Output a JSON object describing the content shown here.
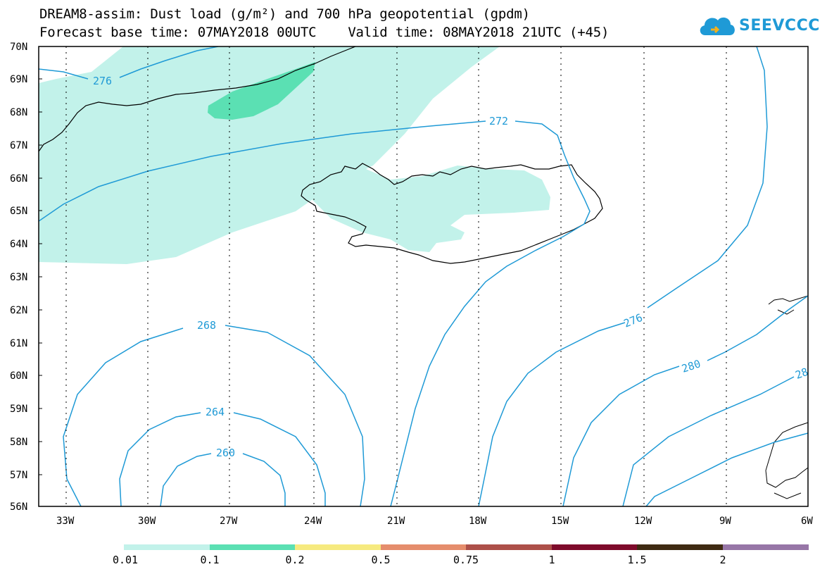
{
  "header": {
    "title_line1": "DREAM8-assim: Dust load (g/m²) and 700 hPa geopotential (gpdm)",
    "title_line2": "Forecast base time: 07MAY2018 00UTC    Valid time: 08MAY2018 21UTC (+45)",
    "logo_text": "SEEVCCC",
    "logo_icon": "cloud-icon"
  },
  "map": {
    "lat_labels": [
      "70N",
      "69N",
      "68N",
      "67N",
      "66N",
      "65N",
      "64N",
      "63N",
      "62N",
      "61N",
      "60N",
      "59N",
      "58N",
      "57N",
      "56N"
    ],
    "lon_labels": [
      "33W",
      "30W",
      "27W",
      "24W",
      "21W",
      "18W",
      "15W",
      "12W",
      "9W",
      "6W"
    ],
    "contour_labels": [
      "276",
      "272",
      "268",
      "264",
      "260",
      "276",
      "280",
      "28"
    ],
    "dust_colors": {
      "low": "#c2f2ea",
      "mid": "#5be0b3"
    },
    "contour_color": "#1f9ad6"
  },
  "colorbar": {
    "labels": [
      "0.01",
      "0.1",
      "0.2",
      "0.5",
      "0.75",
      "1",
      "1.5",
      "2"
    ],
    "colors": [
      "#c2f2ea",
      "#5be0b3",
      "#f6ea7f",
      "#e58d6c",
      "#ad5049",
      "#7e0b2b",
      "#3f2a12",
      "#9776a7"
    ]
  }
}
